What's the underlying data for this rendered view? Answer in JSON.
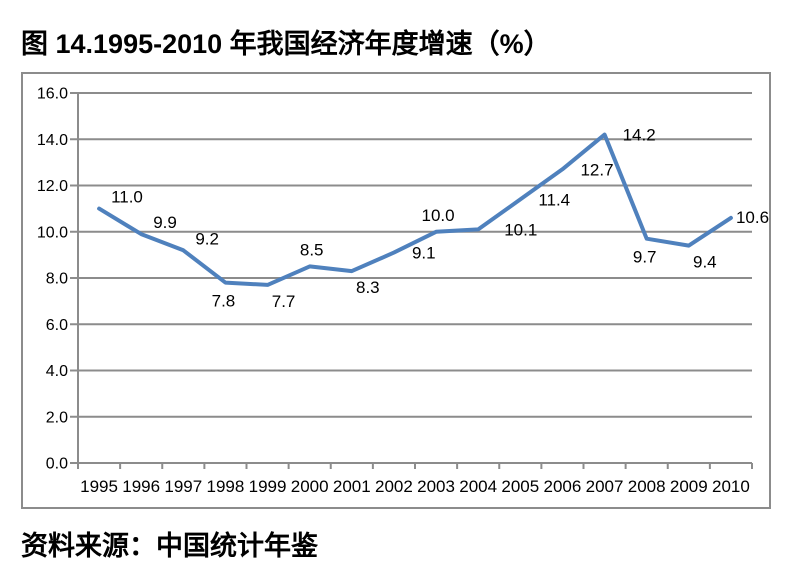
{
  "figure": {
    "title": "图 14.1995-2010 年我国经济年度增速（%）",
    "source": "资料来源：中国统计年鉴"
  },
  "chart_data": {
    "type": "line",
    "title": "图 14.1995-2010 年我国经济年度增速（%）",
    "source": "资料来源：中国统计年鉴",
    "categories": [
      "1995",
      "1996",
      "1997",
      "1998",
      "1999",
      "2000",
      "2001",
      "2002",
      "2003",
      "2004",
      "2005",
      "2006",
      "2007",
      "2008",
      "2009",
      "2010"
    ],
    "values": [
      11.0,
      9.9,
      9.2,
      7.8,
      7.7,
      8.5,
      8.3,
      9.1,
      10.0,
      10.1,
      11.4,
      12.7,
      14.2,
      9.7,
      9.4,
      10.6
    ],
    "data_labels": [
      "11.0",
      "9.9",
      "9.2",
      "7.8",
      "7.7",
      "8.5",
      "8.3",
      "9.1",
      "10.0",
      "10.1",
      "11.4",
      "12.7",
      "14.2",
      "9.7",
      "9.4",
      "10.6"
    ],
    "label_placements": [
      "above-right",
      "above-right",
      "above-right",
      "below",
      "below-right",
      "above",
      "below-right",
      "right",
      "above",
      "right-far",
      "right",
      "right",
      "right",
      "below",
      "below-right",
      "right-near"
    ],
    "xlabel": "",
    "ylabel": "",
    "ylim": [
      0,
      16
    ],
    "ytick_step": 2,
    "ytick_labels": [
      "0.0",
      "2.0",
      "4.0",
      "6.0",
      "8.0",
      "10.0",
      "12.0",
      "14.0",
      "16.0"
    ],
    "grid": true,
    "legend": "none",
    "colors": {
      "line": "#4F81BD",
      "grid": "#8C8C8C",
      "axis": "#8C8C8C",
      "frame": "#8C8C8C",
      "text": "#000000"
    }
  }
}
